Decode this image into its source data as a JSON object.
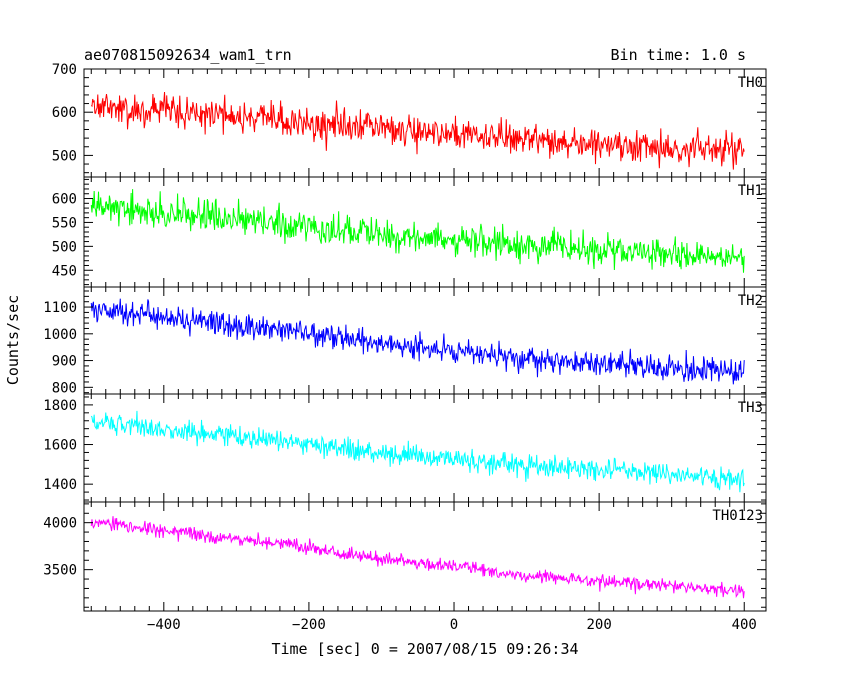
{
  "chart_data": {
    "type": "line",
    "title_left": "ae070815092634_wam1_trn",
    "title_right": "Bin time: 1.0 s",
    "xlabel": "Time [sec] 0 = 2007/08/15 09:26:34",
    "ylabel": "Counts/sec",
    "xlim": [
      -510,
      430
    ],
    "x_ticks": [
      -400,
      -200,
      0,
      200,
      400
    ],
    "x_range": [
      -500,
      400
    ],
    "line_color": "#000000",
    "panels": [
      {
        "name": "TH0",
        "color": "#ff0000",
        "ylim": [
          450,
          700
        ],
        "y_ticks": [
          500,
          600,
          700
        ],
        "trend": [
          [
            -500,
            612
          ],
          [
            -300,
            590
          ],
          [
            -100,
            565
          ],
          [
            100,
            535
          ],
          [
            400,
            512
          ]
        ],
        "noise_sd": 32
      },
      {
        "name": "TH1",
        "color": "#00ff00",
        "ylim": [
          415,
          645
        ],
        "y_ticks": [
          450,
          500,
          550,
          600
        ],
        "trend": [
          [
            -500,
            580
          ],
          [
            -300,
            555
          ],
          [
            -100,
            525
          ],
          [
            100,
            500
          ],
          [
            400,
            478
          ]
        ],
        "noise_sd": 28
      },
      {
        "name": "TH2",
        "color": "#0000ff",
        "ylim": [
          775,
          1175
        ],
        "y_ticks": [
          800,
          900,
          1000,
          1100
        ],
        "trend": [
          [
            -500,
            1100
          ],
          [
            -300,
            1030
          ],
          [
            -100,
            965
          ],
          [
            100,
            905
          ],
          [
            400,
            855
          ]
        ],
        "noise_sd": 38
      },
      {
        "name": "TH3",
        "color": "#00ffff",
        "ylim": [
          1310,
          1855
        ],
        "y_ticks": [
          1400,
          1600,
          1800
        ],
        "trend": [
          [
            -500,
            1710
          ],
          [
            -300,
            1640
          ],
          [
            -100,
            1560
          ],
          [
            100,
            1490
          ],
          [
            400,
            1430
          ]
        ],
        "noise_sd": 45
      },
      {
        "name": "TH0123",
        "color": "#ff00ff",
        "ylim": [
          3060,
          4220
        ],
        "y_ticks": [
          3500,
          4000
        ],
        "trend": [
          [
            -500,
            4000
          ],
          [
            -300,
            3830
          ],
          [
            -100,
            3620
          ],
          [
            100,
            3440
          ],
          [
            400,
            3270
          ]
        ],
        "noise_sd": 60
      }
    ]
  }
}
